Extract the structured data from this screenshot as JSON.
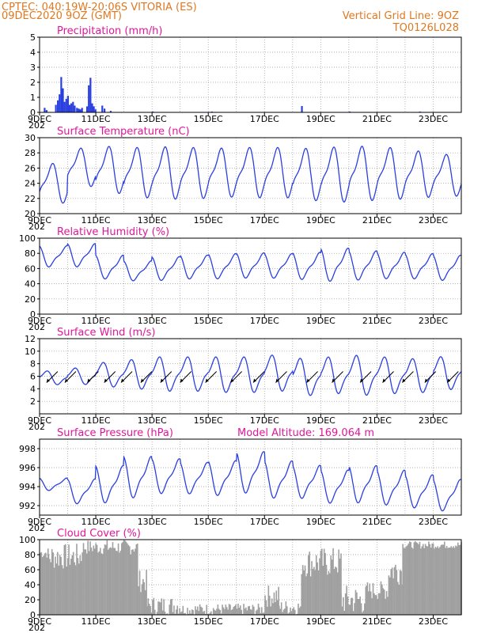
{
  "header": {
    "line1": "CPTEC:   040:19W-20:06S   VITORIA (ES)",
    "line2": "09DEC2020 9OZ (GMT)",
    "grid_note": "Vertical Grid Line: 9OZ",
    "code": "TQ0126L028",
    "model_altitude": "Model Altitude: 169.064 m"
  },
  "colors": {
    "header": "#e07820",
    "title": "#e0179a",
    "line": "#2a3fe0",
    "cloud": "#a0a0a0",
    "grid": "#999999"
  },
  "x_ticks": [
    "9DEC",
    "11DEC",
    "13DEC",
    "15DEC",
    "17DEC",
    "19DEC",
    "21DEC",
    "23DEC"
  ],
  "x_cut": "202",
  "chart_data": [
    {
      "type": "bar",
      "title": "Precipitation (mm/h)",
      "x_unit": "days since 09DEC2020",
      "ylim": [
        0,
        5
      ],
      "yticks": [
        0,
        1,
        2,
        3,
        4,
        5
      ],
      "bars": [
        [
          0.15,
          0.3
        ],
        [
          0.22,
          0.15
        ],
        [
          0.55,
          0.5
        ],
        [
          0.62,
          0.8
        ],
        [
          0.68,
          1.2
        ],
        [
          0.74,
          2.35
        ],
        [
          0.8,
          1.6
        ],
        [
          0.86,
          0.7
        ],
        [
          0.92,
          0.9
        ],
        [
          0.98,
          1.1
        ],
        [
          1.04,
          0.5
        ],
        [
          1.1,
          0.6
        ],
        [
          1.16,
          0.7
        ],
        [
          1.22,
          0.45
        ],
        [
          1.3,
          0.3
        ],
        [
          1.36,
          0.25
        ],
        [
          1.42,
          0.2
        ],
        [
          1.48,
          0.3
        ],
        [
          1.66,
          0.4
        ],
        [
          1.72,
          1.8
        ],
        [
          1.78,
          2.3
        ],
        [
          1.84,
          0.6
        ],
        [
          1.9,
          0.4
        ],
        [
          1.96,
          0.2
        ],
        [
          2.2,
          0.45
        ],
        [
          2.28,
          0.25
        ],
        [
          2.5,
          0.1
        ],
        [
          4.0,
          0.05
        ],
        [
          6.1,
          0.05
        ],
        [
          9.3,
          0.42
        ],
        [
          11.0,
          0.05
        ],
        [
          13.5,
          0.05
        ]
      ]
    },
    {
      "type": "line",
      "title": "Surface Temperature (nC)",
      "ylim": [
        20,
        30
      ],
      "yticks": [
        20,
        22,
        24,
        26,
        28,
        30
      ],
      "day_max": [
        27,
        29,
        29.3,
        29.2,
        29.3,
        29.2,
        29.1,
        29.2,
        29.2,
        29.1,
        29.3,
        29.4,
        29.2,
        28.7,
        28.2
      ],
      "day_min": [
        21,
        23.2,
        22.2,
        21.6,
        21.4,
        21.5,
        21.7,
        21.6,
        21.6,
        21.2,
        21,
        21.2,
        21.4,
        21.7,
        21.9
      ]
    },
    {
      "type": "line",
      "title": "Relative Humidity (%)",
      "ylim": [
        0,
        100
      ],
      "yticks": [
        0,
        20,
        40,
        60,
        80,
        100
      ],
      "day_high": [
        92,
        95,
        80,
        72,
        78,
        80,
        82,
        83,
        82,
        84,
        90,
        86,
        84,
        82,
        80
      ],
      "day_low": [
        60,
        60,
        44,
        42,
        42,
        44,
        44,
        45,
        45,
        43,
        40,
        42,
        44,
        44,
        42
      ]
    },
    {
      "type": "line",
      "title": "Surface Wind (m/s)",
      "ylim": [
        0,
        12
      ],
      "yticks": [
        2,
        4,
        6,
        8,
        10,
        12
      ],
      "day_high": [
        7,
        7.5,
        8.5,
        9,
        9.5,
        9.5,
        9.5,
        9.5,
        9.8,
        9.3,
        9.5,
        9.8,
        9.5,
        9.2,
        9.5
      ],
      "day_low": [
        4.5,
        4.5,
        4,
        3.6,
        3.2,
        3.2,
        3,
        3,
        3.2,
        2.5,
        2.8,
        2.5,
        2.8,
        3,
        3.5
      ],
      "vectors": [
        {
          "x": 0.25,
          "dir": "ne-sw"
        },
        {
          "x": 0.9,
          "dir": "ne-sw"
        },
        {
          "x": 1.7,
          "dir": "ne-sw"
        },
        {
          "x": 2.3,
          "dir": "ne-sw"
        },
        {
          "x": 2.9,
          "dir": "ne-sw"
        },
        {
          "x": 3.6,
          "dir": "ne-sw"
        },
        {
          "x": 4.3,
          "dir": "ne-sw"
        },
        {
          "x": 5.0,
          "dir": "ne-sw"
        },
        {
          "x": 5.9,
          "dir": "ne-sw"
        },
        {
          "x": 6.8,
          "dir": "ne-sw"
        },
        {
          "x": 7.6,
          "dir": "ne-sw"
        },
        {
          "x": 8.4,
          "dir": "ne-sw"
        },
        {
          "x": 9.5,
          "dir": "ne-sw"
        },
        {
          "x": 10.4,
          "dir": "ne-sw"
        },
        {
          "x": 11.4,
          "dir": "ne-sw"
        },
        {
          "x": 12.2,
          "dir": "ne-sw"
        },
        {
          "x": 12.9,
          "dir": "ne-sw"
        },
        {
          "x": 13.7,
          "dir": "ne-sw"
        },
        {
          "x": 14.5,
          "dir": "ne-sw"
        }
      ]
    },
    {
      "type": "line",
      "title": "Surface Pressure (hPa)",
      "ylim": [
        991,
        999
      ],
      "yticks": [
        992,
        994,
        996,
        998
      ],
      "day_high": [
        995,
        995,
        996.5,
        997.5,
        997.2,
        996.8,
        997,
        998,
        997,
        996.5,
        996,
        996.5,
        996,
        995.5,
        995
      ],
      "day_low": [
        993.5,
        992,
        992,
        992.5,
        993,
        993,
        992.8,
        993,
        992.5,
        992.5,
        992,
        992,
        991.8,
        991.5,
        991.2
      ]
    },
    {
      "type": "bar",
      "title": "Cloud Cover (%)",
      "ylim": [
        0,
        100
      ],
      "yticks": [
        0,
        20,
        40,
        60,
        80,
        100
      ],
      "segments": [
        [
          0,
          0.3,
          75,
          90
        ],
        [
          0.3,
          1.5,
          60,
          95
        ],
        [
          1.5,
          3.5,
          80,
          100
        ],
        [
          3.5,
          3.8,
          30,
          60
        ],
        [
          3.8,
          5.0,
          0,
          25
        ],
        [
          5.0,
          8.0,
          0,
          15
        ],
        [
          8.0,
          8.5,
          10,
          40
        ],
        [
          8.5,
          9.3,
          0,
          20
        ],
        [
          9.3,
          10.7,
          50,
          90
        ],
        [
          10.7,
          11.6,
          0,
          40
        ],
        [
          11.6,
          12.4,
          20,
          45
        ],
        [
          12.4,
          12.9,
          40,
          80
        ],
        [
          12.9,
          15.0,
          88,
          98
        ]
      ]
    }
  ]
}
